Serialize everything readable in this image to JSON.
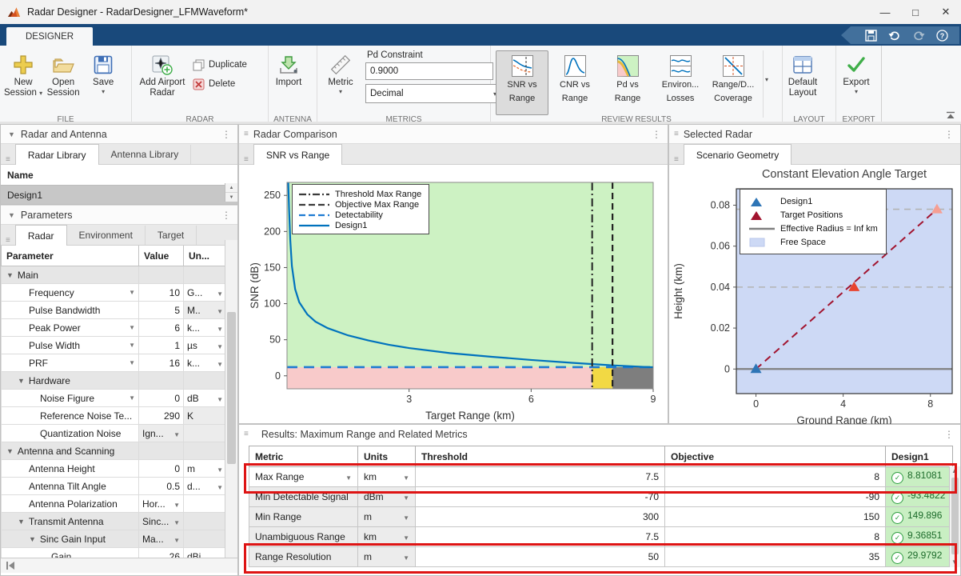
{
  "window": {
    "title": "Radar Designer - RadarDesigner_LFMWaveform*",
    "controls": {
      "minimize": "—",
      "maximize": "□",
      "close": "✕"
    }
  },
  "ribbon": {
    "tab": "DESIGNER",
    "sections": {
      "file": {
        "label": "FILE",
        "new_session": [
          "New",
          "Session"
        ],
        "open_session": [
          "Open",
          "Session"
        ],
        "save_label": "Save"
      },
      "radar": {
        "label": "RADAR",
        "add_airport_radar": [
          "Add Airport",
          "Radar"
        ],
        "duplicate_label": "Duplicate",
        "delete_label": "Delete"
      },
      "antenna": {
        "label": "ANTENNA",
        "import_label": "Import"
      },
      "metrics": {
        "label": "METRICS",
        "metric_label": "Metric",
        "pd_constraint_label": "Pd Constraint",
        "pd_constraint_value": "0.9000",
        "format_value": "Decimal"
      },
      "review": {
        "label": "REVIEW RESULTS",
        "items": [
          {
            "label": [
              "SNR vs",
              "Range"
            ],
            "selected": true
          },
          {
            "label": [
              "CNR vs",
              "Range"
            ],
            "selected": false
          },
          {
            "label": [
              "Pd vs",
              "Range"
            ],
            "selected": false
          },
          {
            "label": [
              "Environ...",
              "Losses"
            ],
            "selected": false
          },
          {
            "label": [
              "Range/D...",
              "Coverage"
            ],
            "selected": false
          }
        ]
      },
      "layout": {
        "label": "LAYOUT",
        "default_layout": [
          "Default",
          "Layout"
        ]
      },
      "export": {
        "label": "EXPORT",
        "export_label": "Export"
      }
    }
  },
  "left": {
    "radar_antenna_title": "Radar and Antenna",
    "tabs": [
      "Radar Library",
      "Antenna Library"
    ],
    "name_header": "Name",
    "designs": [
      "Design1"
    ],
    "parameters_title": "Parameters",
    "param_tabs": [
      "Radar",
      "Environment",
      "Target"
    ],
    "param_columns": [
      "Parameter",
      "Value",
      "Un..."
    ],
    "param_rows": [
      {
        "label": "Main",
        "level": 0,
        "group": true
      },
      {
        "label": "Frequency",
        "level": 1,
        "name_dd": true,
        "value": "10",
        "unit": "G...",
        "unit_dd": true
      },
      {
        "label": "Pulse Bandwidth",
        "level": 1,
        "shaded": true,
        "value": "5",
        "unit": "M..",
        "unit_dd": true
      },
      {
        "label": "Peak Power",
        "level": 1,
        "name_dd": true,
        "value": "6",
        "unit": "k...",
        "unit_dd": true
      },
      {
        "label": "Pulse Width",
        "level": 1,
        "name_dd": true,
        "value": "1",
        "unit": "µs",
        "unit_dd": true
      },
      {
        "label": "PRF",
        "level": 1,
        "name_dd": true,
        "value": "16",
        "unit": "k...",
        "unit_dd": true
      },
      {
        "label": "Hardware",
        "level": 1,
        "group": true
      },
      {
        "label": "Noise Figure",
        "level": 2,
        "name_dd": true,
        "value": "0",
        "unit": "dB",
        "unit_dd": true
      },
      {
        "label": "Reference Noise Te...",
        "level": 2,
        "shaded": true,
        "value": "290",
        "unit": "K"
      },
      {
        "label": "Quantization Noise",
        "level": 2,
        "shaded": true,
        "value": "Ign...",
        "value_dd": true
      },
      {
        "label": "Antenna and Scanning",
        "level": 0,
        "group": true
      },
      {
        "label": "Antenna Height",
        "level": 1,
        "value": "0",
        "unit": "m",
        "unit_dd": true
      },
      {
        "label": "Antenna Tilt Angle",
        "level": 1,
        "value": "0.5",
        "unit": "d...",
        "unit_dd": true
      },
      {
        "label": "Antenna Polarization",
        "level": 1,
        "value": "Hor...",
        "value_dd": true
      },
      {
        "label": "Transmit Antenna",
        "level": 1,
        "group": true,
        "value": "Sinc...",
        "value_dd": true
      },
      {
        "label": "Sinc Gain Input",
        "level": 2,
        "group": true,
        "value": "Ma...",
        "value_dd": true
      },
      {
        "label": "Gain",
        "level": 3,
        "value": "26",
        "unit": "dBi"
      }
    ]
  },
  "middle": {
    "panel_title": "Radar Comparison",
    "tab": "SNR vs Range"
  },
  "right": {
    "panel_title": "Selected Radar",
    "tab": "Scenario Geometry"
  },
  "results": {
    "title": "Results: Maximum Range and Related Metrics",
    "columns": [
      "Metric",
      "Units",
      "Threshold",
      "Objective",
      "Design1"
    ],
    "highlight_color": "#de1414",
    "rows": [
      {
        "metric": "Max Range",
        "metric_dd": true,
        "units": "km",
        "threshold": "7.5",
        "objective": "8",
        "design1": "8.81081",
        "status": "pass",
        "highlighted": true,
        "selected": true
      },
      {
        "metric": "Min Detectable Signal",
        "units": "dBm",
        "threshold": "-70",
        "objective": "-90",
        "design1": "-93.4822",
        "status": "pass"
      },
      {
        "metric": "Min Range",
        "units": "m",
        "threshold": "300",
        "objective": "150",
        "design1": "149.896",
        "status": "pass"
      },
      {
        "metric": "Unambiguous Range",
        "units": "km",
        "threshold": "7.5",
        "objective": "8",
        "design1": "9.36851",
        "status": "pass"
      },
      {
        "metric": "Range Resolution",
        "units": "m",
        "threshold": "50",
        "objective": "35",
        "design1": "29.9792",
        "status": "pass",
        "highlighted": true
      }
    ]
  },
  "chart_data": [
    {
      "type": "line",
      "title": "SNR vs Range",
      "xlabel": "Target Range (km)",
      "ylabel": "SNR (dB)",
      "xlim": [
        0,
        9
      ],
      "ylim": [
        -18,
        268
      ],
      "xticks": [
        3,
        6,
        9
      ],
      "yticks": [
        0,
        50,
        100,
        150,
        200,
        250
      ],
      "grid": false,
      "legend_position": "top-left",
      "detectability_dB": 12,
      "threshold_max_range_km": 7.5,
      "objective_max_range_km": 8,
      "achieved_max_range_km": 8.81081,
      "series": [
        {
          "name": "Design1",
          "x": [
            0.03,
            0.05,
            0.08,
            0.12,
            0.2,
            0.3,
            0.5,
            0.7,
            1,
            1.5,
            2,
            2.5,
            3,
            4,
            5,
            6,
            7,
            8,
            8.81,
            9
          ],
          "y": [
            268,
            232,
            188,
            152,
            120,
            102,
            85,
            75,
            66,
            56,
            49,
            43,
            38.5,
            31.5,
            26.5,
            22,
            18,
            14.5,
            12.3,
            11.9
          ]
        }
      ],
      "legend": [
        {
          "label": "Threshold Max Range",
          "style": "dashdot",
          "color": "#3a3a3a"
        },
        {
          "label": "Objective Max Range",
          "style": "dash",
          "color": "#3a3a3a"
        },
        {
          "label": "Detectability",
          "style": "dash",
          "color": "#1e7bd2"
        },
        {
          "label": "Design1",
          "style": "solid",
          "color": "#0072bd"
        }
      ],
      "colors": {
        "feasible": "#cdf2c3",
        "below_threshold": "#f8caca",
        "threshold_objective_band": "#f2d944",
        "beyond_objective": "#7e7e7e",
        "curve": "#0072bd",
        "detectability": "#1e7bd2"
      }
    },
    {
      "type": "scatter",
      "title": "Constant Elevation Angle Target",
      "xlabel": "Ground Range (km)",
      "ylabel": "Height (km)",
      "xlim": [
        -0.9,
        9
      ],
      "ylim": [
        -0.012,
        0.088
      ],
      "xticks": [
        0,
        4,
        8
      ],
      "yticks": [
        0,
        0.02,
        0.04,
        0.06,
        0.08
      ],
      "grid": false,
      "legend_position": "top-left",
      "radar_position": {
        "x": 0,
        "y": 0
      },
      "target_positions": [
        {
          "x": 4.5,
          "y": 0.04,
          "highlighted": false
        },
        {
          "x": 8.3,
          "y": 0.078,
          "highlighted": true
        }
      ],
      "sightline": {
        "from": [
          0,
          0
        ],
        "to": [
          8.3,
          0.078
        ]
      },
      "horizontal_reference_lines": [
        0.04,
        0.078
      ],
      "surface_line_y": 0,
      "legend": [
        {
          "label": "Design1",
          "marker": "triangle",
          "color": "#2e75b6"
        },
        {
          "label": "Target Positions",
          "marker": "triangle",
          "color": "#a2142f"
        },
        {
          "label": "Effective Radius = Inf km",
          "style": "solid",
          "color": "#808080"
        },
        {
          "label": "Free Space",
          "swatch": "#cdd9f5"
        }
      ],
      "colors": {
        "free_space": "#cdd9f5",
        "surface": "#808080",
        "reference_dash": "#b3b3b3",
        "sightline": "#a2142f",
        "radar_marker": "#2e75b6",
        "target_marker": "#e8432e",
        "highlighted_target_marker": "#f59f93"
      }
    }
  ]
}
